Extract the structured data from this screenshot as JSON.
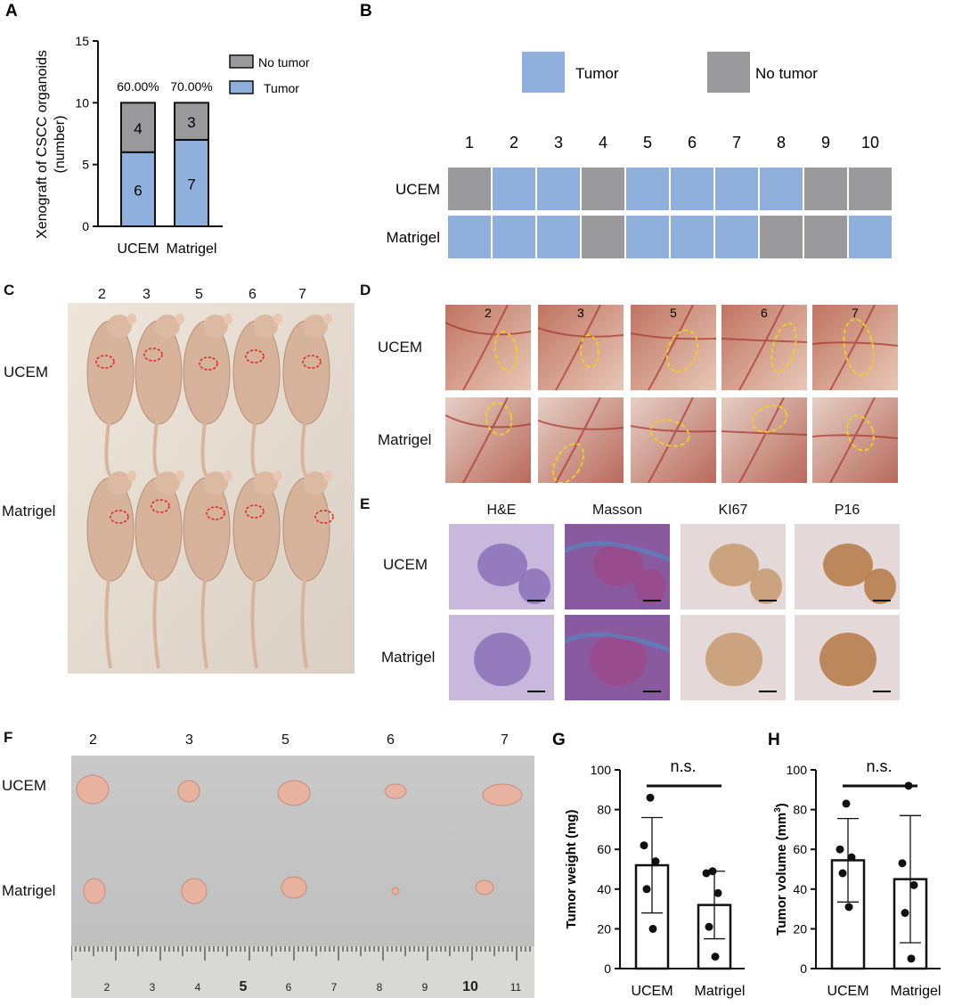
{
  "figure": {
    "panel_letters": [
      "A",
      "B",
      "C",
      "D",
      "E",
      "F",
      "G",
      "H"
    ],
    "colors": {
      "tumor": "#8fb0dc",
      "no_tumor": "#9a9a9d",
      "photo_skin": "#c9a88c",
      "tissue_pink": "#c27e8e"
    }
  },
  "panelA": {
    "ylabel_line1": "Xenograft of CSCC organoids",
    "ylabel_line2": "(number)",
    "legend": [
      "No tumor",
      "Tumor"
    ],
    "percent_labels": [
      "60.00%",
      "70.00%"
    ]
  },
  "panelB": {
    "legend": [
      "Tumor",
      "No tumor"
    ],
    "columns": [
      "1",
      "2",
      "3",
      "4",
      "5",
      "6",
      "7",
      "8",
      "9",
      "10"
    ],
    "rows": [
      {
        "label": "UCEM",
        "values": [
          "N",
          "T",
          "T",
          "N",
          "T",
          "T",
          "T",
          "T",
          "N",
          "N"
        ]
      },
      {
        "label": "Matrigel",
        "values": [
          "T",
          "T",
          "T",
          "N",
          "T",
          "T",
          "T",
          "N",
          "N",
          "T"
        ]
      }
    ]
  },
  "panelC": {
    "mouse_ids": [
      "2",
      "3",
      "5",
      "6",
      "7"
    ],
    "row_labels": [
      "UCEM",
      "Matrigel"
    ]
  },
  "panelD": {
    "mouse_ids": [
      "2",
      "3",
      "5",
      "6",
      "7"
    ],
    "row_labels": [
      "UCEM",
      "Matrigel"
    ]
  },
  "panelE": {
    "columns": [
      "H&E",
      "Masson",
      "KI67",
      "P16"
    ],
    "row_labels": [
      "UCEM",
      "Matrigel"
    ],
    "colors": [
      "#8a70b8",
      "#9a4a8a",
      "#c89a70",
      "#b57a45"
    ]
  },
  "panelF": {
    "mouse_ids": [
      "2",
      "3",
      "5",
      "6",
      "7"
    ],
    "row_labels": [
      "UCEM",
      "Matrigel"
    ],
    "ruler_labels": [
      "2",
      "3",
      "4",
      "5",
      "6",
      "7",
      "8",
      "9",
      "10",
      "11"
    ]
  },
  "chart_data": [
    {
      "panel": "A",
      "type": "bar",
      "stacked": true,
      "categories": [
        "UCEM",
        "Matrigel"
      ],
      "series": [
        {
          "name": "Tumor",
          "values": [
            6,
            7
          ]
        },
        {
          "name": "No tumor",
          "values": [
            4,
            3
          ]
        }
      ],
      "ylabel": "Xenograft of CSCC organoids (number)",
      "ylim": [
        0,
        15
      ],
      "yticks": [
        0,
        5,
        10,
        15
      ],
      "legend_position": "top-right"
    },
    {
      "panel": "G",
      "type": "bar",
      "categories": [
        "UCEM",
        "Matrigel"
      ],
      "values": [
        52,
        32
      ],
      "error": [
        24,
        17
      ],
      "points": [
        [
          86,
          62,
          54,
          40,
          20
        ],
        [
          49,
          48,
          38,
          21,
          6
        ]
      ],
      "ylabel": "Tumor weight (mg)",
      "ylim": [
        0,
        100
      ],
      "yticks": [
        0,
        20,
        40,
        60,
        80,
        100
      ],
      "annotation": "n.s."
    },
    {
      "panel": "H",
      "type": "bar",
      "categories": [
        "UCEM",
        "Matrigel"
      ],
      "values": [
        54.5,
        45
      ],
      "error": [
        21,
        32
      ],
      "points": [
        [
          83,
          60,
          56,
          48,
          31
        ],
        [
          92,
          53,
          42,
          28,
          5
        ]
      ],
      "ylabel": "Tumor volume",
      "ylabel_unit": "(mm",
      "ylabel_sup": "3",
      "ylabel_close": ")",
      "ylim": [
        0,
        100
      ],
      "yticks": [
        0,
        20,
        40,
        60,
        80,
        100
      ],
      "annotation": "n.s."
    }
  ]
}
